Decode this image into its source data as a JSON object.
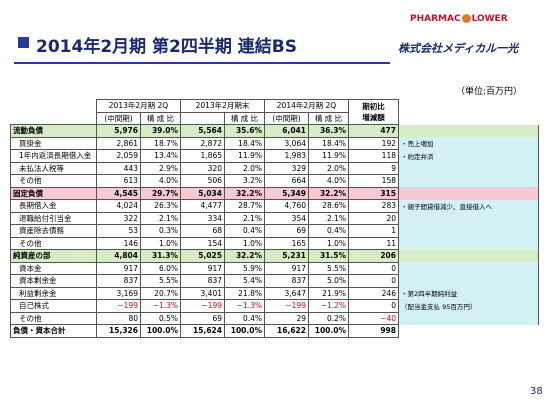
{
  "header": {
    "title": "2014年2月期 第2四半期 連結BS",
    "brand_left": "PHARMAC",
    "brand_right": "LOWER",
    "company": "株式会社メディカル一光"
  },
  "unit": "（単位:百万円）",
  "table": {
    "periods": [
      {
        "name": "2013年2月期 2Q",
        "sub_amount": "(中間期)",
        "sub_ratio": "構 成 比"
      },
      {
        "name": "2013年2月期末",
        "sub_ratio": "構 成 比"
      },
      {
        "name": "2014年2月期 2Q",
        "sub_amount": "(中間期)",
        "sub_ratio": "構 成 比"
      }
    ],
    "change_header": [
      "期初比",
      "増減額"
    ],
    "rows": [
      {
        "kind": "section-a",
        "label": "流動負債",
        "cells": [
          "5,976",
          "39.0%",
          "5,564",
          "35.6%",
          "6,041",
          "36.3%",
          "477"
        ]
      },
      {
        "kind": "item",
        "label": "買掛金",
        "cells": [
          "2,861",
          "18.7%",
          "2,872",
          "18.4%",
          "3,064",
          "18.4%",
          "192"
        ],
        "note": "・売上増加"
      },
      {
        "kind": "item",
        "label": "1年内返済長期借入金",
        "cells": [
          "2,059",
          "13.4%",
          "1,865",
          "11.9%",
          "1,983",
          "11.9%",
          "118"
        ],
        "note": "・約定弁済"
      },
      {
        "kind": "item",
        "label": "未払法人税等",
        "cells": [
          "443",
          "2.9%",
          "320",
          "2.0%",
          "329",
          "2.0%",
          "9"
        ]
      },
      {
        "kind": "item",
        "label": "その他",
        "cells": [
          "613",
          "4.0%",
          "506",
          "3.2%",
          "664",
          "4.0%",
          "158"
        ]
      },
      {
        "kind": "section-b",
        "label": "固定負債",
        "cells": [
          "4,545",
          "29.7%",
          "5,034",
          "32.2%",
          "5,349",
          "32.2%",
          "315"
        ]
      },
      {
        "kind": "item",
        "label": "長期借入金",
        "cells": [
          "4,024",
          "26.3%",
          "4,477",
          "28.7%",
          "4,760",
          "28.6%",
          "283"
        ],
        "note": "・親子間貸借減少、直接借入へ"
      },
      {
        "kind": "item",
        "label": "退職給付引当金",
        "cells": [
          "322",
          "2.1%",
          "334",
          "2.1%",
          "354",
          "2.1%",
          "20"
        ]
      },
      {
        "kind": "item",
        "label": "資産除去債務",
        "cells": [
          "53",
          "0.3%",
          "68",
          "0.4%",
          "69",
          "0.4%",
          "1"
        ]
      },
      {
        "kind": "item",
        "label": "その他",
        "cells": [
          "146",
          "1.0%",
          "154",
          "1.0%",
          "165",
          "1.0%",
          "11"
        ]
      },
      {
        "kind": "section-a",
        "label": "純資産の部",
        "cells": [
          "4,804",
          "31.3%",
          "5,025",
          "32.2%",
          "5,231",
          "31.5%",
          "206"
        ]
      },
      {
        "kind": "item",
        "label": "資本金",
        "cells": [
          "917",
          "6.0%",
          "917",
          "5.9%",
          "917",
          "5.5%",
          "0"
        ]
      },
      {
        "kind": "item",
        "label": "資本剰余金",
        "cells": [
          "837",
          "5.5%",
          "837",
          "5.4%",
          "837",
          "5.0%",
          "0"
        ]
      },
      {
        "kind": "item",
        "label": "利益剰余金",
        "cells": [
          "3,169",
          "20.7%",
          "3,401",
          "21.8%",
          "3,647",
          "21.9%",
          "246"
        ],
        "note": "・第2四半期純利益"
      },
      {
        "kind": "item",
        "label": "自己株式",
        "cells": [
          "−199",
          "−1.3%",
          "−199",
          "−1.3%",
          "−199",
          "−1.2%",
          "0"
        ],
        "note": "（配当金支払 95百万円）"
      },
      {
        "kind": "item",
        "label": "その他",
        "cells": [
          "80",
          "0.5%",
          "69",
          "0.4%",
          "29",
          "0.2%",
          "−40"
        ]
      },
      {
        "kind": "total",
        "label": "負債・資本合計",
        "cells": [
          "15,326",
          "100.0%",
          "15,624",
          "100.0%",
          "16,622",
          "100.0%",
          "998"
        ]
      }
    ]
  },
  "page_number": "38"
}
